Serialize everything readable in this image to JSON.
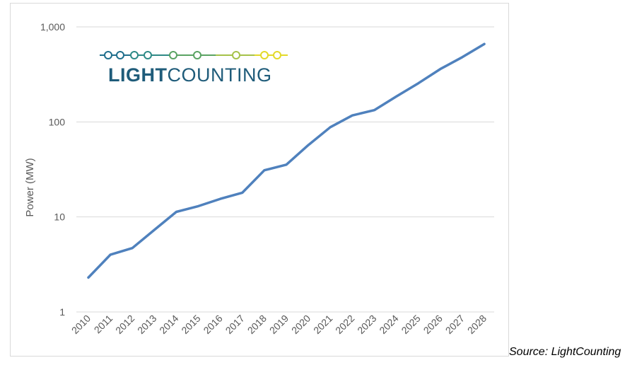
{
  "chart_data": {
    "type": "line",
    "x": [
      "2010",
      "2011",
      "2012",
      "2013",
      "2014",
      "2015",
      "2016",
      "2017",
      "2018",
      "2019",
      "2020",
      "2021",
      "2022",
      "2023",
      "2024",
      "2025",
      "2026",
      "2027",
      "2028"
    ],
    "series": [
      {
        "values": [
          2.3,
          4.0,
          4.7,
          7.3,
          11.3,
          13.0,
          15.5,
          18.0,
          31.0,
          35.5,
          57.0,
          88.0,
          117.0,
          133.0,
          185.0,
          255.0,
          360.0,
          480.0,
          660.0
        ]
      }
    ],
    "ylabel": "Power (MW)",
    "xlabel": "",
    "yscale": "log",
    "ylim": [
      1,
      1000
    ],
    "yticks": [
      1,
      10,
      100,
      1000
    ],
    "ytick_labels": [
      "1",
      "10",
      "100",
      "1,000"
    ],
    "grid": true,
    "colors": {
      "line": "#4f81bd",
      "grid": "#d9d9d9"
    }
  },
  "logo": {
    "text_bold": "LIGHT",
    "text_regular": "COUNTING",
    "color_bold": "#1f5c7a",
    "color_regular": "#1f5c7a",
    "line_colors": [
      "#1f6e8c",
      "#2e8a86",
      "#5aa363",
      "#a5c24a",
      "#e3d92a"
    ]
  },
  "source": "Source: LightCounting"
}
